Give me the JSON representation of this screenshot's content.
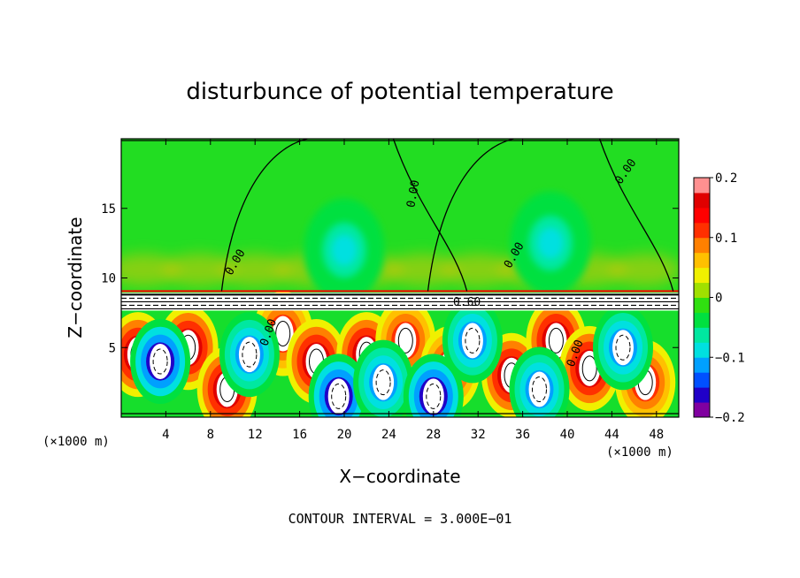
{
  "chart_data": {
    "type": "heatmap",
    "title": "disturbunce of potential temperature",
    "xlabel": "X−coordinate",
    "ylabel": "Z−coordinate",
    "x_unit": "(×1000 m)",
    "y_unit": "(×1000 m)",
    "xlim": [
      0,
      50
    ],
    "ylim": [
      0,
      20
    ],
    "x_ticks": [
      4,
      8,
      12,
      16,
      20,
      24,
      28,
      32,
      36,
      40,
      44,
      48
    ],
    "y_ticks": [
      5,
      10,
      15
    ],
    "colorbar": {
      "range": [
        -0.2,
        0.2
      ],
      "tick_values": [
        0.2,
        0.1,
        0,
        -0.1,
        -0.2
      ],
      "tick_labels": [
        "0.2",
        "0.1",
        "0",
        "−0.1",
        "−0.2"
      ],
      "colors": [
        "#8000a0",
        "#2000c8",
        "#0050ff",
        "#00a0ff",
        "#00e0e0",
        "#00e8a0",
        "#00e040",
        "#30e010",
        "#a0e000",
        "#f0f000",
        "#ffc000",
        "#ff8000",
        "#ff3000",
        "#ff0000",
        "#e00000",
        "#ff9090"
      ]
    },
    "contour_interval_note": "CONTOUR INTERVAL = 3.000E−01",
    "contour_labels": [
      "0.00",
      "0.00",
      "0.00",
      "0.00",
      "0.60",
      "0.00",
      "0.00"
    ],
    "background_value": 0,
    "layer_interface_z": 8.8,
    "warm_cells": [
      {
        "x": 1.5,
        "z": 4.5,
        "v": 0.2
      },
      {
        "x": 6.0,
        "z": 5.0,
        "v": 0.2
      },
      {
        "x": 9.5,
        "z": 2.0,
        "v": 0.2
      },
      {
        "x": 14.5,
        "z": 6.0,
        "v": 0.15
      },
      {
        "x": 17.5,
        "z": 4.0,
        "v": 0.2
      },
      {
        "x": 22.0,
        "z": 4.5,
        "v": 0.2
      },
      {
        "x": 25.5,
        "z": 5.5,
        "v": 0.15
      },
      {
        "x": 29.5,
        "z": 3.5,
        "v": 0.15
      },
      {
        "x": 35.0,
        "z": 3.0,
        "v": 0.2
      },
      {
        "x": 39.0,
        "z": 5.5,
        "v": 0.2
      },
      {
        "x": 42.0,
        "z": 3.5,
        "v": 0.2
      },
      {
        "x": 47.0,
        "z": 2.5,
        "v": 0.15
      }
    ],
    "cold_cells": [
      {
        "x": 3.5,
        "z": 4.0,
        "v": -0.2
      },
      {
        "x": 11.5,
        "z": 4.5,
        "v": -0.15
      },
      {
        "x": 19.5,
        "z": 1.5,
        "v": -0.2
      },
      {
        "x": 23.5,
        "z": 2.5,
        "v": -0.15
      },
      {
        "x": 28.0,
        "z": 1.5,
        "v": -0.2
      },
      {
        "x": 31.5,
        "z": 5.5,
        "v": -0.15
      },
      {
        "x": 37.5,
        "z": 2.0,
        "v": -0.15
      },
      {
        "x": 45.0,
        "z": 5.0,
        "v": -0.15
      },
      {
        "x": 20.0,
        "z": 12.0,
        "v": -0.08
      },
      {
        "x": 38.5,
        "z": 12.5,
        "v": -0.08
      }
    ]
  }
}
